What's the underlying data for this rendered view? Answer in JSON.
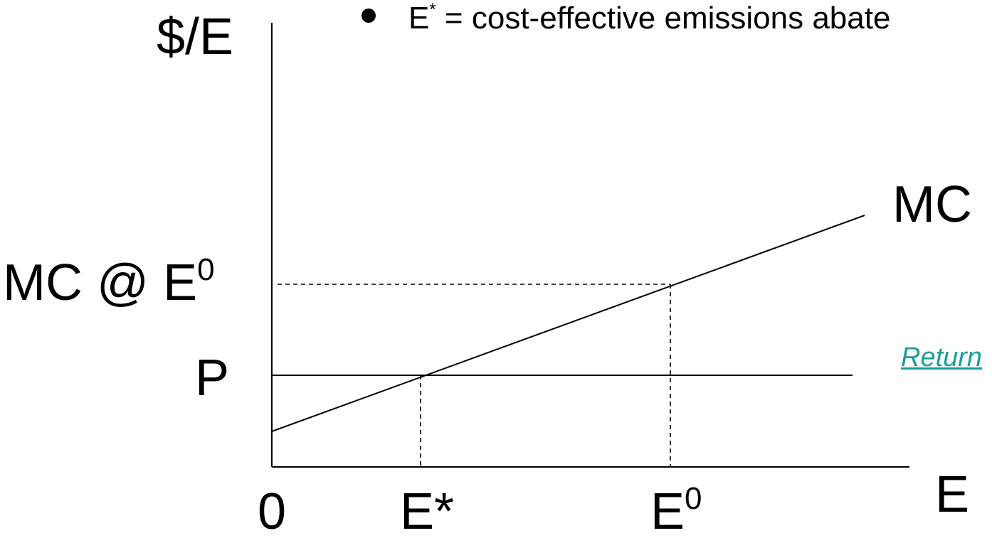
{
  "bullet": {
    "symbol": "E",
    "superscript": "*",
    "text": " = cost-effective emissions abate"
  },
  "labels": {
    "y_axis": "$/E",
    "x_axis": "E",
    "origin": "0",
    "mc_curve": "MC",
    "mc_at_e0_main": "MC @ E",
    "mc_at_e0_sup": "0",
    "price": "P",
    "e_star": "E*",
    "e0_main": "E",
    "e0_sup": "0"
  },
  "link": {
    "text": "Return"
  },
  "colors": {
    "line": "#000000",
    "link": "#1a9e9e"
  }
}
